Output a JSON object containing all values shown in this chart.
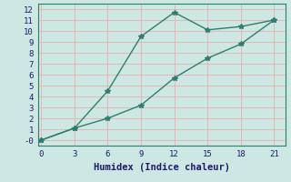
{
  "xlabel": "Humidex (Indice chaleur)",
  "x": [
    0,
    3,
    6,
    9,
    12,
    15,
    18,
    21
  ],
  "line1_y": [
    0.0,
    1.1,
    4.5,
    9.5,
    11.7,
    10.1,
    10.4,
    11.0
  ],
  "line2_y": [
    0.0,
    1.1,
    2.0,
    3.2,
    5.7,
    7.5,
    8.8,
    11.0
  ],
  "line_color": "#2e7d6e",
  "bg_color": "#cde8e3",
  "grid_color": "#e8b4b4",
  "ylim": [
    -0.5,
    12.5
  ],
  "xlim": [
    -0.3,
    22
  ],
  "yticks": [
    0,
    1,
    2,
    3,
    4,
    5,
    6,
    7,
    8,
    9,
    10,
    11,
    12
  ],
  "ytick_labels": [
    "-0",
    "1",
    "2",
    "3",
    "4",
    "5",
    "6",
    "7",
    "8",
    "9",
    "10",
    "11",
    "12"
  ],
  "xticks": [
    0,
    3,
    6,
    9,
    12,
    15,
    18,
    21
  ],
  "marker": "*",
  "marker_size": 4,
  "line_width": 1.0,
  "tick_color": "#1a1a6e",
  "label_color": "#1a1a6e",
  "font_family": "monospace",
  "xlabel_fontsize": 7.5,
  "tick_fontsize": 6.5
}
